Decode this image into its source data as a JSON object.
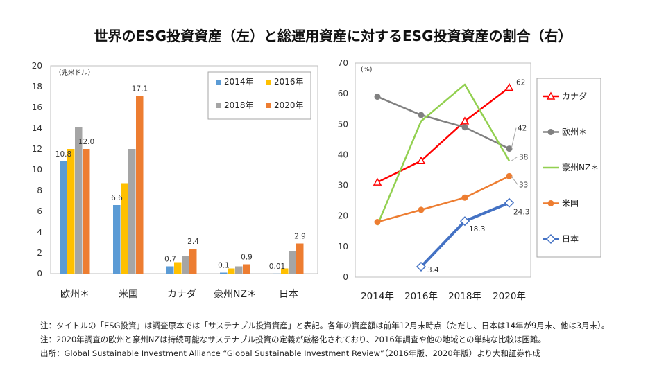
{
  "title": "世界のESG投資資産（左）と総運用資産に対するESG投資資産の割合（右）",
  "chart_data": [
    {
      "type": "bar",
      "title": "世界のESG投資資産",
      "unit_label": "（兆米ドル）",
      "ylim": [
        0,
        20
      ],
      "yticks": [
        0,
        2,
        4,
        6,
        8,
        10,
        12,
        14,
        16,
        18,
        20
      ],
      "categories": [
        "欧州＊",
        "米国",
        "カナダ",
        "豪州NZ＊",
        "日本"
      ],
      "series": [
        {
          "name": "2014年",
          "color": "#5B9BD5",
          "values": [
            10.8,
            6.6,
            0.7,
            0.1,
            0.01
          ]
        },
        {
          "name": "2016年",
          "color": "#FFC000",
          "values": [
            12.0,
            8.7,
            1.1,
            0.5,
            0.5
          ]
        },
        {
          "name": "2018年",
          "color": "#A5A5A5",
          "values": [
            14.1,
            12.0,
            1.7,
            0.7,
            2.2
          ]
        },
        {
          "name": "2020年",
          "color": "#ED7D31",
          "values": [
            12.0,
            17.1,
            2.4,
            0.9,
            2.9
          ]
        }
      ],
      "data_labels": [
        {
          "category": 0,
          "series": 0,
          "text": "10.8"
        },
        {
          "category": 0,
          "series": 3,
          "text": "12.0"
        },
        {
          "category": 1,
          "series": 0,
          "text": "6.6"
        },
        {
          "category": 1,
          "series": 3,
          "text": "17.1"
        },
        {
          "category": 2,
          "series": 0,
          "text": "0.7"
        },
        {
          "category": 2,
          "series": 3,
          "text": "2.4"
        },
        {
          "category": 3,
          "series": 0,
          "text": "0.1"
        },
        {
          "category": 3,
          "series": 3,
          "text": "0.9"
        },
        {
          "category": 4,
          "series": 0,
          "text": "0.01"
        },
        {
          "category": 4,
          "series": 3,
          "text": "2.9"
        }
      ],
      "legend": "top-right, inside plot"
    },
    {
      "type": "line",
      "title": "総運用資産に対するESG投資資産の割合",
      "unit_label": "(%)",
      "ylim": [
        0,
        70
      ],
      "yticks": [
        0,
        10,
        20,
        30,
        40,
        50,
        60,
        70
      ],
      "categories": [
        "2014年",
        "2016年",
        "2018年",
        "2020年"
      ],
      "series": [
        {
          "name": "カナダ",
          "color": "#FF0000",
          "marker": "triangle",
          "values": [
            31,
            38,
            51,
            62
          ]
        },
        {
          "name": "欧州＊",
          "color": "#808080",
          "marker": "circle",
          "values": [
            59,
            53,
            49,
            42
          ]
        },
        {
          "name": "豪州NZ＊",
          "color": "#92D050",
          "marker": "none",
          "values": [
            17,
            51,
            63,
            38
          ]
        },
        {
          "name": "米国",
          "color": "#ED7D31",
          "marker": "circle",
          "values": [
            18,
            22,
            26,
            33
          ]
        },
        {
          "name": "日本",
          "color": "#4472C4",
          "marker": "diamond",
          "values": [
            null,
            3.4,
            18.3,
            24.3
          ]
        }
      ],
      "data_labels": [
        {
          "series": 0,
          "index": 3,
          "text": "62"
        },
        {
          "series": 1,
          "index": 3,
          "text": "42"
        },
        {
          "series": 2,
          "index": 3,
          "text": "38"
        },
        {
          "series": 3,
          "index": 3,
          "text": "33"
        },
        {
          "series": 4,
          "index": 1,
          "text": "3.4"
        },
        {
          "series": 4,
          "index": 2,
          "text": "18.3"
        },
        {
          "series": 4,
          "index": 3,
          "text": "24.3"
        }
      ],
      "legend": "right, outside plot"
    }
  ],
  "notes": [
    "注：タイトルの「ESG投資」は調査原本では「サステナブル投資資産」と表記。各年の資産額は前年12月末時点（ただし、日本は14年が9月末、他は3月末）。",
    "注：2020年調査の欧州と豪州NZは持続可能なサステナブル投資の定義が厳格化されており、2016年調査や他の地域との単純な比較は困難。",
    "出所：Global Sustainable Investment Alliance “Global Sustainable Investment Review”（2016年版、2020年版）より大和証券作成"
  ]
}
